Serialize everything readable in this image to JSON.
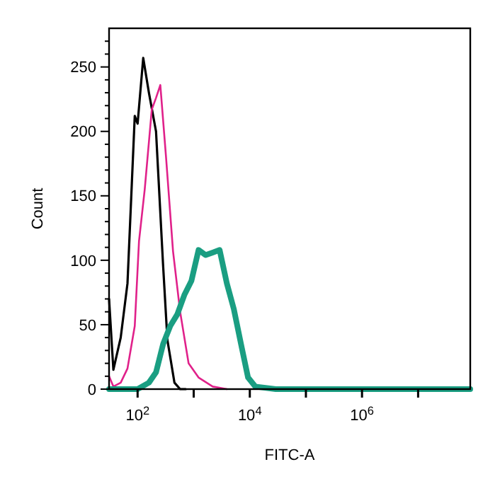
{
  "chart_data": {
    "type": "line",
    "xlabel": "FITC-A",
    "ylabel": "Count",
    "log": "x",
    "grid": false,
    "line_style": "solid",
    "xlim": [
      31,
      85000000
    ],
    "xticks": [
      {
        "value": 100,
        "label": "10$^{2}$"
      },
      {
        "value": 1000,
        "label": null
      },
      {
        "value": 10000,
        "label": "10$^{4}$"
      },
      {
        "value": 100000,
        "label": null
      },
      {
        "value": 1000000,
        "label": "10$^{6}$"
      },
      {
        "value": 10000000,
        "label": null
      }
    ],
    "ylim": [
      0,
      280
    ],
    "yticks": [
      0,
      {
        "value": 10,
        "label": null
      },
      {
        "value": 20,
        "label": null
      },
      {
        "value": 30,
        "label": null
      },
      {
        "value": 40,
        "label": null
      },
      50,
      {
        "value": 60,
        "label": null
      },
      {
        "value": 70,
        "label": null
      },
      {
        "value": 80,
        "label": null
      },
      {
        "value": 90,
        "label": null
      },
      100,
      {
        "value": 110,
        "label": null
      },
      {
        "value": 120,
        "label": null
      },
      {
        "value": 130,
        "label": null
      },
      {
        "value": 140,
        "label": null
      },
      150,
      {
        "value": 160,
        "label": null
      },
      {
        "value": 170,
        "label": null
      },
      {
        "value": 180,
        "label": null
      },
      {
        "value": 190,
        "label": null
      },
      200,
      {
        "value": 210,
        "label": null
      },
      {
        "value": 220,
        "label": null
      },
      {
        "value": 230,
        "label": null
      },
      {
        "value": 240,
        "label": null
      },
      250,
      {
        "value": 260,
        "label": null
      },
      {
        "value": 270,
        "label": null
      }
    ],
    "series": [
      {
        "color": "#000000",
        "x": [
          31,
          37,
          50,
          66,
          89,
          100,
          126,
          159,
          213,
          284,
          340,
          454,
          573,
          720
        ],
        "values": [
          70,
          15,
          40,
          82,
          212,
          206,
          257,
          230,
          200,
          97,
          38,
          5,
          0,
          0
        ]
      },
      {
        "color": "#e0218a",
        "x": [
          31,
          37,
          50,
          66,
          89,
          106,
          134,
          179,
          213,
          254,
          320,
          428,
          573,
          811,
          1220,
          2180,
          3900
        ],
        "values": [
          10,
          2,
          5,
          16,
          49,
          115,
          155,
          217,
          226,
          236,
          181,
          107,
          60,
          20,
          9,
          2,
          0
        ]
      },
      {
        "color": "#1a9e82",
        "x": [
          31,
          100,
          159,
          213,
          285,
          382,
          510,
          680,
          910,
          1220,
          1630,
          2180,
          2900,
          3900,
          5200,
          6970,
          9300,
          12500,
          29000,
          85000000
        ],
        "values": [
          0,
          0,
          5,
          13,
          35,
          49,
          58,
          73,
          84,
          108,
          104,
          106,
          108,
          82,
          62,
          35,
          9,
          2,
          0,
          0
        ]
      }
    ]
  }
}
